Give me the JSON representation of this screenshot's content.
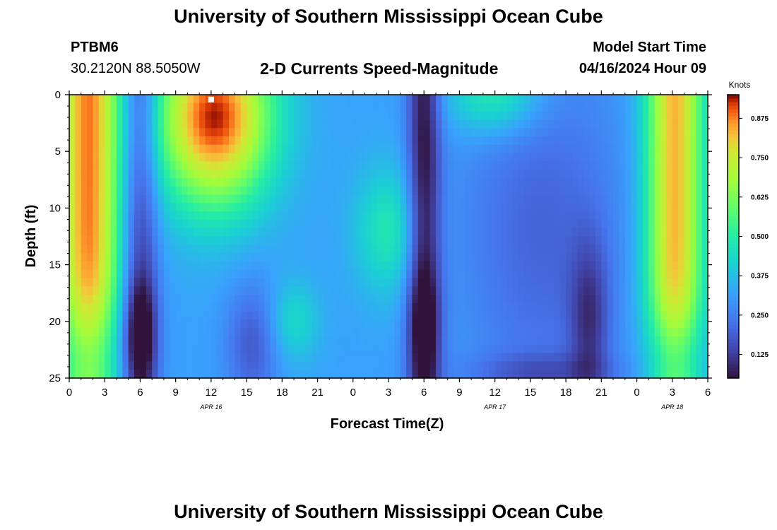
{
  "header": {
    "title": "University of Southern Mississippi Ocean Cube",
    "station": "PTBM6",
    "coordinates": "30.2120N  88.5050W",
    "model_start_label": "Model Start Time",
    "model_start_value": "04/16/2024 Hour 09"
  },
  "footer": {
    "title": "University of Southern Mississippi Ocean Cube"
  },
  "chart_data": {
    "type": "heatmap",
    "title": "2-D Currents Speed-Magnitude",
    "xlabel": "Forecast Time(Z)",
    "ylabel": "Depth (ft)",
    "colorbar_label": "Knots",
    "colorbar_ticks": [
      "0.125",
      "0.250",
      "0.375",
      "0.500",
      "0.625",
      "0.750",
      "0.875"
    ],
    "colorbar_range": [
      0.05,
      0.95
    ],
    "x_range_hours": [
      0,
      54
    ],
    "y_range_ft": [
      0,
      25
    ],
    "y_ticks": [
      0,
      5,
      10,
      15,
      20,
      25
    ],
    "x_tick_labels": [
      "0",
      "3",
      "6",
      "9",
      "12",
      "15",
      "18",
      "21",
      "0",
      "3",
      "6",
      "9",
      "12",
      "15",
      "18",
      "21",
      "0",
      "3",
      "6"
    ],
    "date_labels": [
      {
        "label": "APR 16",
        "hour": 12
      },
      {
        "label": "APR 17",
        "hour": 36
      },
      {
        "label": "APR 18",
        "hour": 51
      }
    ],
    "marker": {
      "hour": 12,
      "depth_ft": 0.3
    },
    "features_knots": [
      {
        "hour": 1.5,
        "depth_ft": 10,
        "speed": 0.9
      },
      {
        "hour": 6,
        "depth_ft": 21,
        "speed": 0.05
      },
      {
        "hour": 12,
        "depth_ft": 2,
        "speed": 0.92
      },
      {
        "hour": 15,
        "depth_ft": 23,
        "speed": 0.1
      },
      {
        "hour": 19,
        "depth_ft": 20,
        "speed": 0.47
      },
      {
        "hour": 27,
        "depth_ft": 12,
        "speed": 0.5
      },
      {
        "hour": 30,
        "depth_ft": 20,
        "speed": 0.08
      },
      {
        "hour": 36,
        "depth_ft": 1,
        "speed": 0.52
      },
      {
        "hour": 44,
        "depth_ft": 21,
        "speed": 0.06
      },
      {
        "hour": 51,
        "depth_ft": 8,
        "speed": 0.72
      }
    ]
  }
}
